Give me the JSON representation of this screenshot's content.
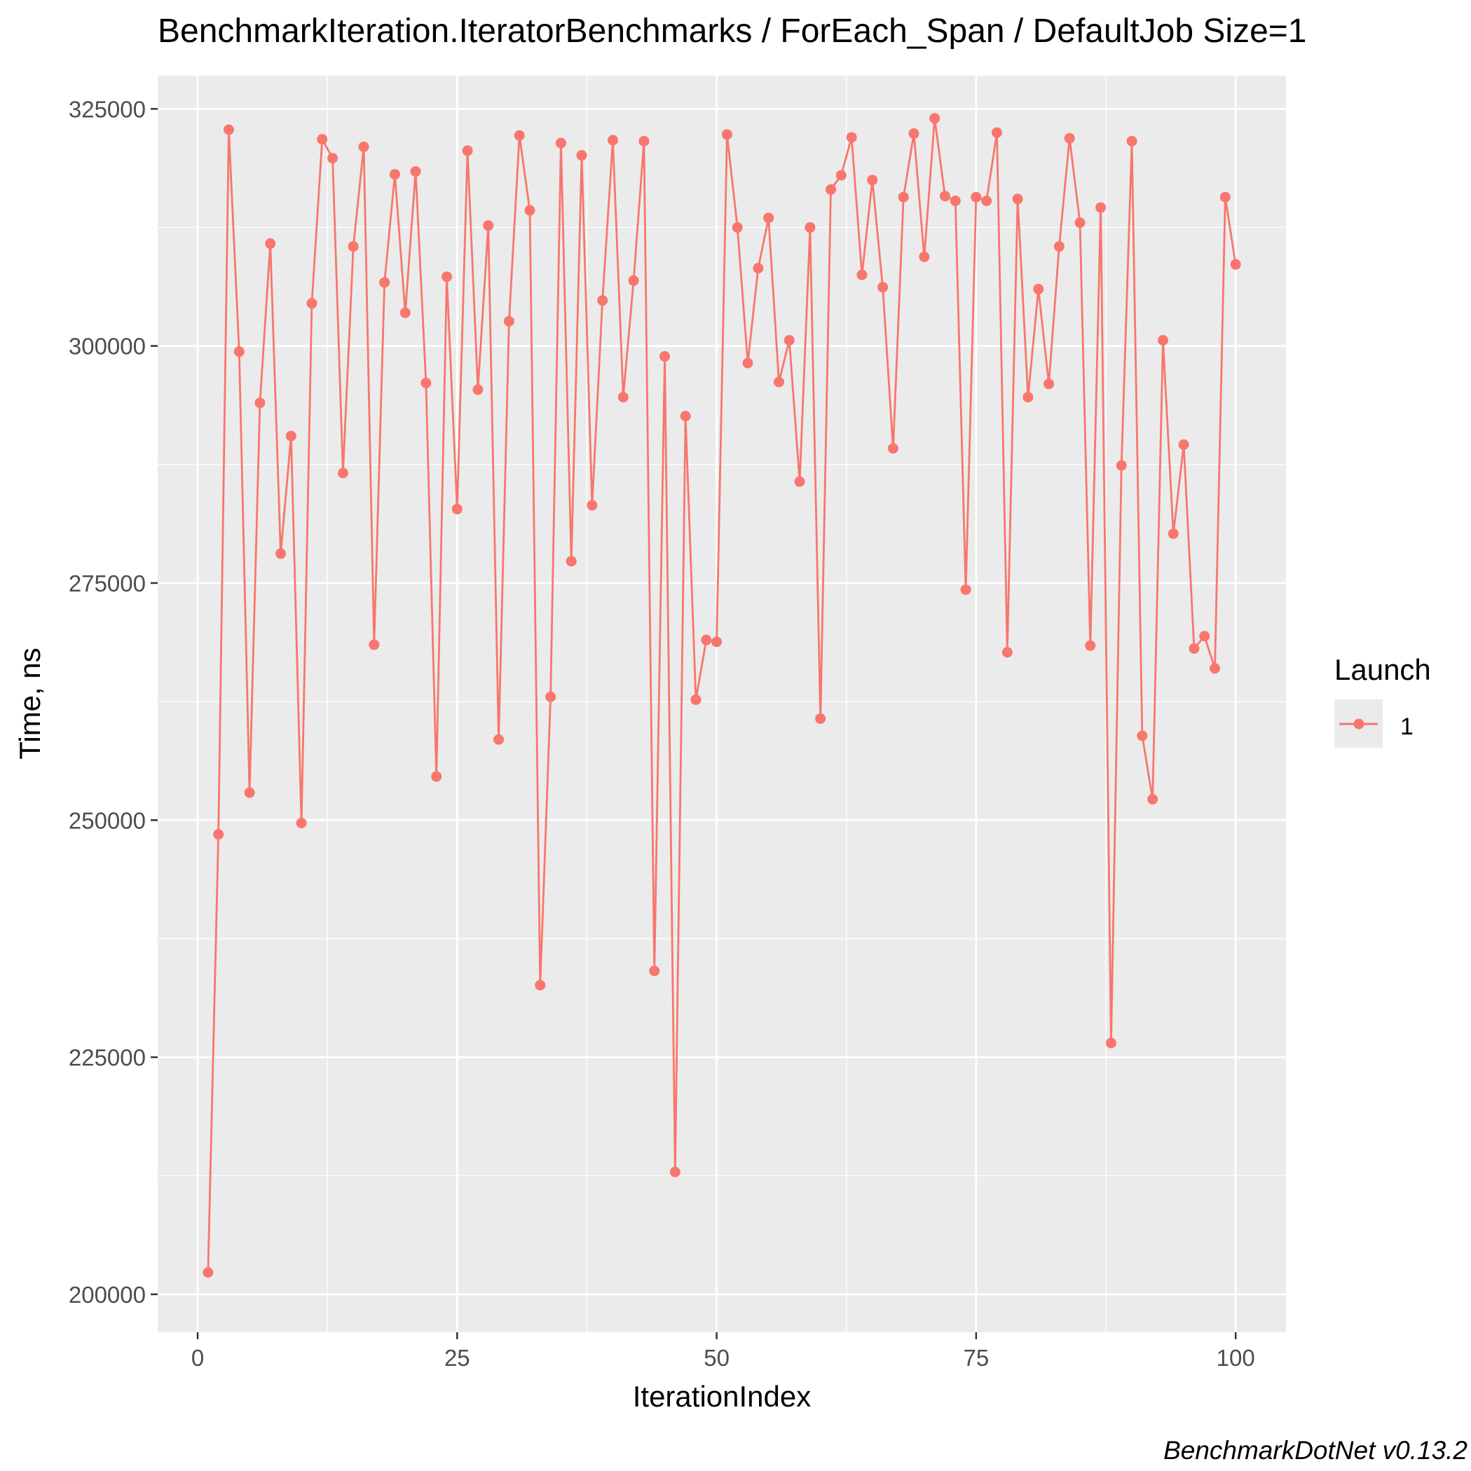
{
  "chart_data": {
    "type": "line",
    "title": "BenchmarkIteration.IteratorBenchmarks / ForEach_Span / DefaultJob Size=1",
    "xlabel": "IterationIndex",
    "ylabel": "Time, ns",
    "caption": "BenchmarkDotNet v0.13.2",
    "xlim": [
      -3.85,
      104.85
    ],
    "ylim": [
      196000,
      328500
    ],
    "x_ticks": [
      0,
      25,
      50,
      75,
      100
    ],
    "x_tick_labels": [
      "0",
      "25",
      "50",
      "75",
      "100"
    ],
    "y_ticks": [
      200000,
      225000,
      250000,
      275000,
      300000,
      325000
    ],
    "y_tick_labels": [
      "200000",
      "225000",
      "250000",
      "275000",
      "300000",
      "325000"
    ],
    "grid": true,
    "legend": {
      "title": "Launch",
      "position": "right"
    },
    "colors": {
      "series": "#F8766D",
      "panel": "#EBEBEB",
      "grid": "#FFFFFF"
    },
    "series": [
      {
        "name": "1",
        "x": [
          1,
          2,
          3,
          4,
          5,
          6,
          7,
          8,
          9,
          10,
          11,
          12,
          13,
          14,
          15,
          16,
          17,
          18,
          19,
          20,
          21,
          22,
          23,
          24,
          25,
          26,
          27,
          28,
          29,
          30,
          31,
          32,
          33,
          34,
          35,
          36,
          37,
          38,
          39,
          40,
          41,
          42,
          43,
          44,
          45,
          46,
          47,
          48,
          49,
          50,
          51,
          52,
          53,
          54,
          55,
          56,
          57,
          58,
          59,
          60,
          61,
          62,
          63,
          64,
          65,
          66,
          67,
          68,
          69,
          70,
          71,
          72,
          73,
          74,
          75,
          76,
          77,
          78,
          79,
          80,
          81,
          82,
          83,
          84,
          85,
          86,
          87,
          88,
          89,
          90,
          91,
          92,
          93,
          94,
          95,
          96,
          97,
          98,
          99,
          100
        ],
        "y": [
          202300,
          248500,
          322800,
          299400,
          252900,
          294000,
          310800,
          278100,
          290500,
          249700,
          304500,
          321800,
          319800,
          286600,
          310500,
          321000,
          268500,
          306700,
          318100,
          303500,
          318400,
          296100,
          254600,
          307300,
          282800,
          320600,
          295400,
          312700,
          258500,
          302600,
          322200,
          314300,
          232600,
          263000,
          321400,
          277300,
          320100,
          283200,
          304800,
          321700,
          294600,
          306900,
          321600,
          234100,
          298900,
          212900,
          292600,
          262700,
          269000,
          268800,
          322300,
          312500,
          298200,
          308200,
          313500,
          296200,
          300600,
          285700,
          312500,
          260700,
          316500,
          318000,
          322000,
          307500,
          317500,
          306200,
          289200,
          315700,
          322400,
          309400,
          324000,
          315800,
          315300,
          274300,
          315700,
          315300,
          322500,
          267700,
          315500,
          294600,
          306000,
          296000,
          310500,
          321900,
          313000,
          268400,
          314600,
          226500,
          287400,
          321600,
          258900,
          252200,
          300600,
          280200,
          289600,
          268100,
          269400,
          266000,
          315700,
          308600
        ]
      }
    ]
  }
}
